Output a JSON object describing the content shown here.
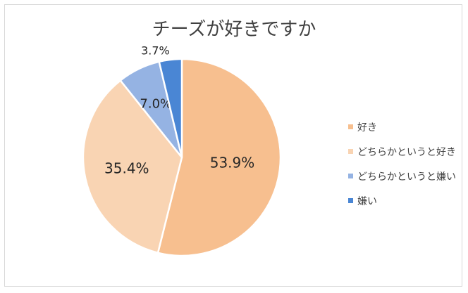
{
  "chart_data": {
    "type": "pie",
    "title": "チーズが好きですか",
    "categories": [
      "好き",
      "どちらかというと好き",
      "どちらかというと嫌い",
      "嫌い"
    ],
    "values": [
      53.9,
      35.4,
      7.0,
      3.7
    ],
    "data_labels": [
      "53.9%",
      "35.4%",
      "7.0%",
      "3.7%"
    ],
    "colors": [
      "#f7bf8f",
      "#f9d4b3",
      "#95b3e3",
      "#4a86d4"
    ],
    "start_angle_deg": 0,
    "direction": "clockwise",
    "legend_position": "right"
  }
}
